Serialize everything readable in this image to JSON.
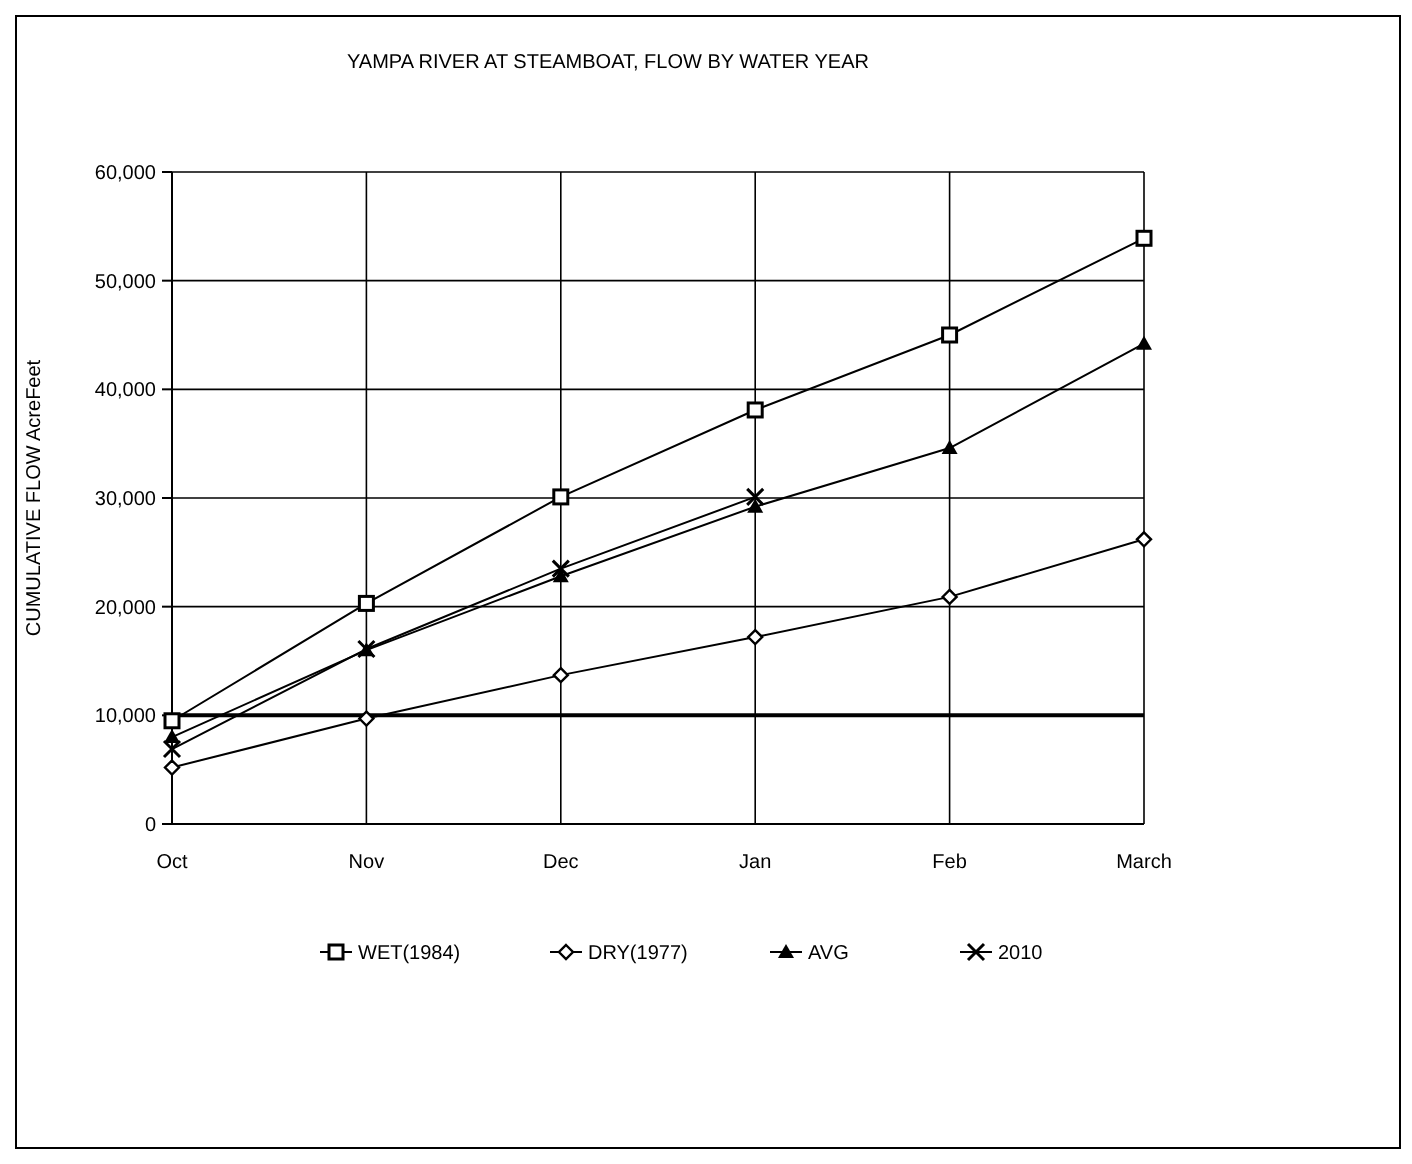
{
  "chart_data": {
    "type": "line",
    "title": "YAMPA RIVER AT STEAMBOAT, FLOW BY WATER YEAR",
    "ylabel": "CUMULATIVE FLOW AcreFeet",
    "categories": [
      "Oct",
      "Nov",
      "Dec",
      "Jan",
      "Feb",
      "March"
    ],
    "series": [
      {
        "name": "WET(1984)",
        "color": "#000000",
        "marker": "square",
        "values": [
          9500,
          20300,
          30100,
          38100,
          45000,
          53900
        ]
      },
      {
        "name": "DRY(1977)",
        "color": "#000000",
        "marker": "diamond",
        "values": [
          5200,
          9700,
          13700,
          17200,
          20900,
          26200
        ]
      },
      {
        "name": "AVG",
        "color": "#000000",
        "marker": "triangle",
        "values": [
          8000,
          16000,
          22800,
          29200,
          34600,
          44200
        ]
      },
      {
        "name": "2010",
        "color": "#000000",
        "marker": "cross",
        "values": [
          6900,
          16100,
          23500,
          30100,
          null,
          null
        ]
      }
    ],
    "ylim": [
      0,
      60000
    ],
    "yticks": [
      {
        "value": 0,
        "label": "0"
      },
      {
        "value": 10000,
        "label": "10,000"
      },
      {
        "value": 20000,
        "label": "20,000"
      },
      {
        "value": 30000,
        "label": "30,000"
      },
      {
        "value": 40000,
        "label": "40,000"
      },
      {
        "value": 50000,
        "label": "50,000"
      },
      {
        "value": 60000,
        "label": "60,000"
      }
    ],
    "grid": true,
    "legend": "bottom",
    "ref_lines": [
      {
        "axis": "y",
        "value": 10000,
        "color": "#000000"
      }
    ]
  }
}
